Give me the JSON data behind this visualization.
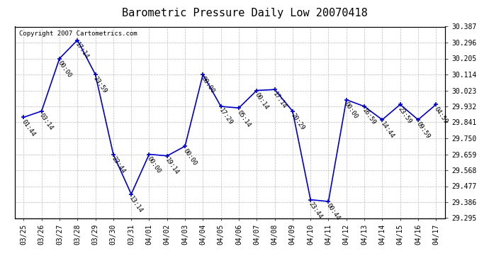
{
  "title": "Barometric Pressure Daily Low 20070418",
  "copyright": "Copyright 2007 Cartometrics.com",
  "ylim": [
    29.295,
    30.387
  ],
  "yticks": [
    29.295,
    29.386,
    29.477,
    29.568,
    29.659,
    29.75,
    29.841,
    29.932,
    30.023,
    30.114,
    30.205,
    30.296,
    30.387
  ],
  "dates": [
    "03/25",
    "03/26",
    "03/27",
    "03/28",
    "03/29",
    "03/30",
    "03/31",
    "04/01",
    "04/02",
    "04/03",
    "04/04",
    "04/05",
    "04/06",
    "04/07",
    "04/08",
    "04/09",
    "04/10",
    "04/11",
    "04/12",
    "04/13",
    "04/14",
    "04/15",
    "04/16",
    "04/17"
  ],
  "values": [
    29.87,
    29.905,
    30.205,
    30.31,
    30.114,
    29.659,
    29.432,
    29.659,
    29.65,
    29.705,
    30.114,
    29.932,
    29.923,
    30.023,
    30.028,
    29.905,
    29.4,
    29.39,
    29.97,
    29.932,
    29.856,
    29.943,
    29.856,
    29.943
  ],
  "labels": [
    "01:44",
    "03:14",
    "00:00",
    "17:14",
    "23:59",
    "23:44",
    "13:14",
    "00:00",
    "19:14",
    "00:00",
    "00:00",
    "17:29",
    "05:14",
    "00:14",
    "17:14",
    "20:29",
    "23:44",
    "00:44",
    "00:00",
    "16:59",
    "14:44",
    "23:59",
    "09:59",
    "04:59"
  ],
  "line_color": "#0000cc",
  "marker_color": "#0000cc",
  "bg_color": "#ffffff",
  "grid_color": "#bbbbbb",
  "title_fontsize": 11,
  "label_fontsize": 6.5,
  "tick_fontsize": 7,
  "copyright_fontsize": 6.5
}
